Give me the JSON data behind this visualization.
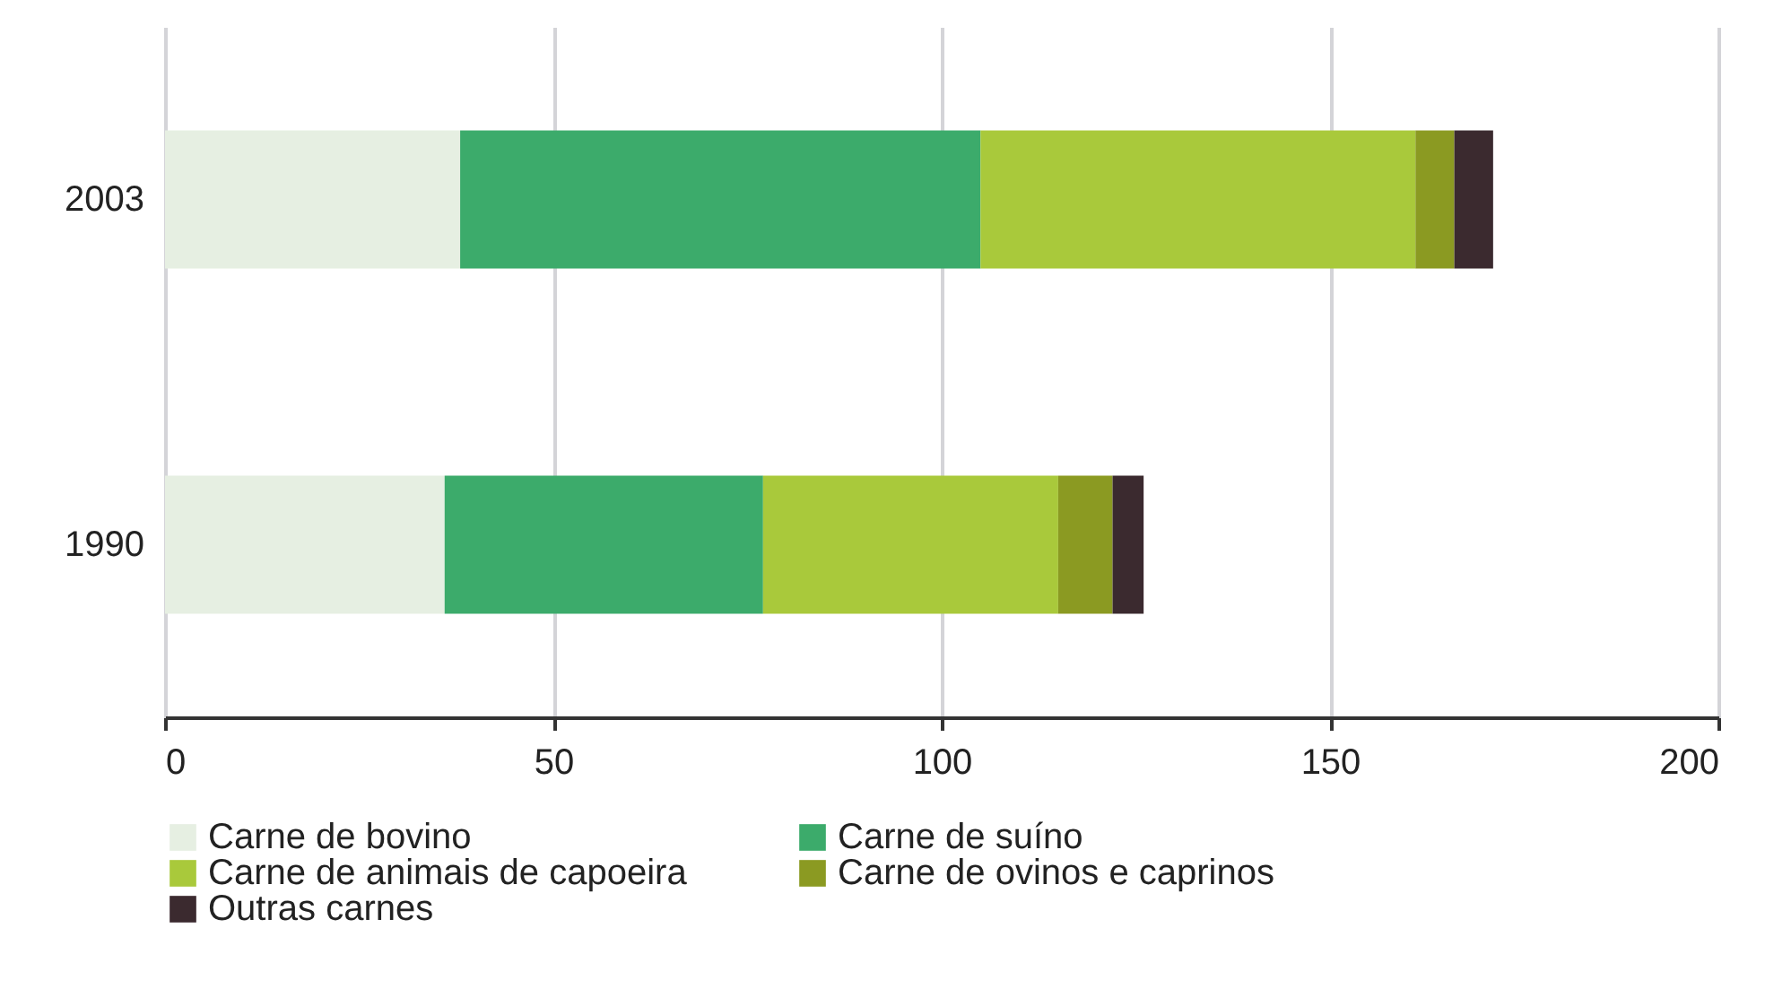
{
  "chart_data": {
    "type": "bar",
    "orientation": "horizontal",
    "stacked": true,
    "categories": [
      "2003",
      "1990"
    ],
    "series": [
      {
        "name": "Carne de bovino",
        "color": "#e6efe2",
        "values": [
          38,
          36
        ]
      },
      {
        "name": "Carne de suíno",
        "color": "#3cab6b",
        "values": [
          67,
          41
        ]
      },
      {
        "name": "Carne de animais de capoeira",
        "color": "#a9c93b",
        "values": [
          56,
          38
        ]
      },
      {
        "name": "Carne de ovinos e caprinos",
        "color": "#8b9a22",
        "values": [
          5,
          7
        ]
      },
      {
        "name": "Outras carnes",
        "color": "#3b2a2f",
        "values": [
          5,
          4
        ]
      }
    ],
    "xlim": [
      0,
      200
    ],
    "xticks": [
      0,
      50,
      100,
      150,
      200
    ],
    "grid": "x",
    "legend": "bottom"
  }
}
